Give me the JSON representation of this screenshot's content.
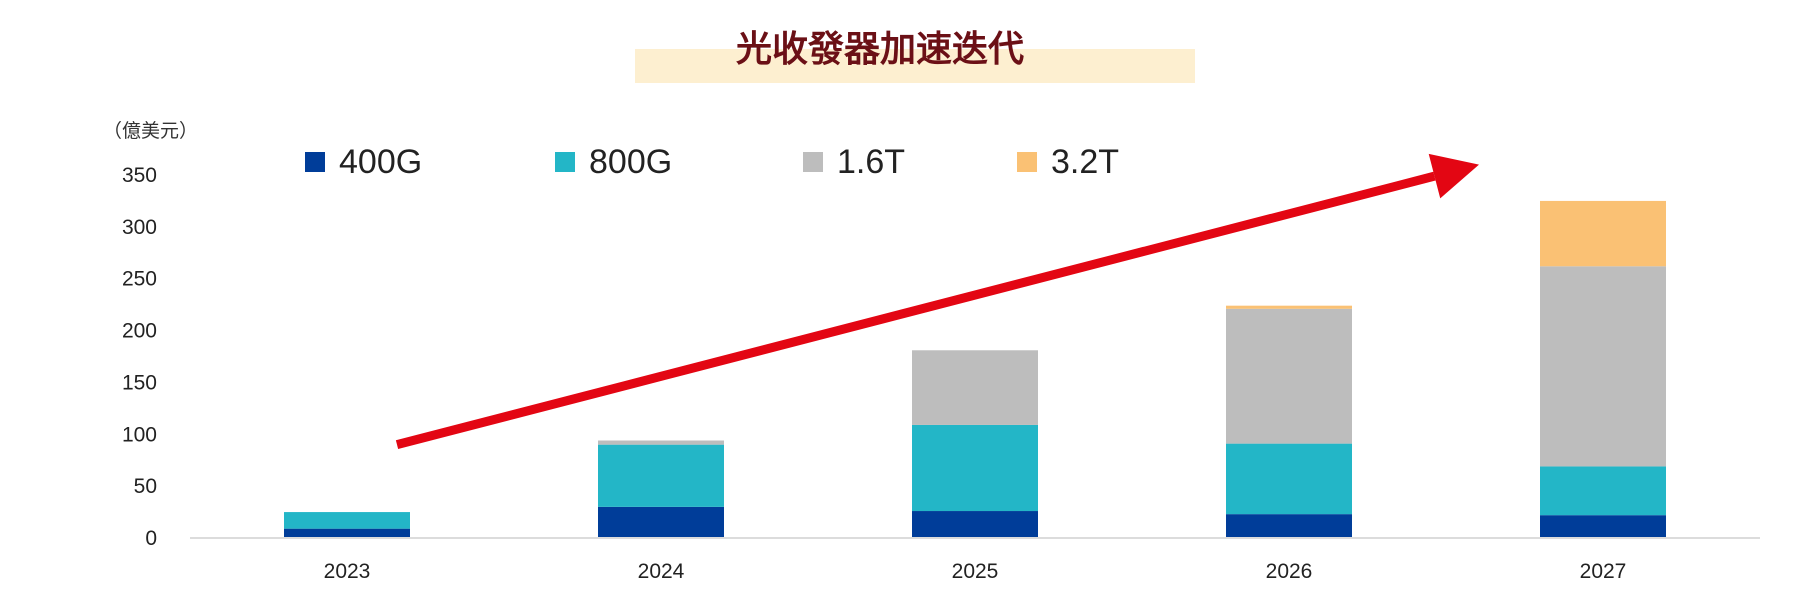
{
  "chart_data": {
    "type": "bar",
    "stacked": true,
    "title": "光收發器加速迭代",
    "ylabel": "（億美元）",
    "xlabel": "",
    "categories": [
      "2023",
      "2024",
      "2025",
      "2026",
      "2027"
    ],
    "ylim": [
      0,
      350
    ],
    "yticks": [
      0,
      50,
      100,
      150,
      200,
      250,
      300,
      350
    ],
    "grid": false,
    "legend_position": "top-left",
    "series": [
      {
        "name": "400G",
        "color": "#003d99",
        "values": [
          9,
          30,
          26,
          23,
          22
        ]
      },
      {
        "name": "800G",
        "color": "#23b6c7",
        "values": [
          16,
          60,
          83,
          68,
          47
        ]
      },
      {
        "name": "1.6T",
        "color": "#bdbdbd",
        "values": [
          0,
          4,
          72,
          130,
          193
        ]
      },
      {
        "name": "3.2T",
        "color": "#fac174",
        "values": [
          0,
          0,
          0,
          3,
          63
        ]
      }
    ],
    "annotations": [
      {
        "type": "trend-arrow",
        "color": "#e30613",
        "from": {
          "x": "2023",
          "y": 90
        },
        "to": {
          "x": "2027",
          "y": 360
        }
      }
    ],
    "title_background_color": "#fdefd0"
  }
}
